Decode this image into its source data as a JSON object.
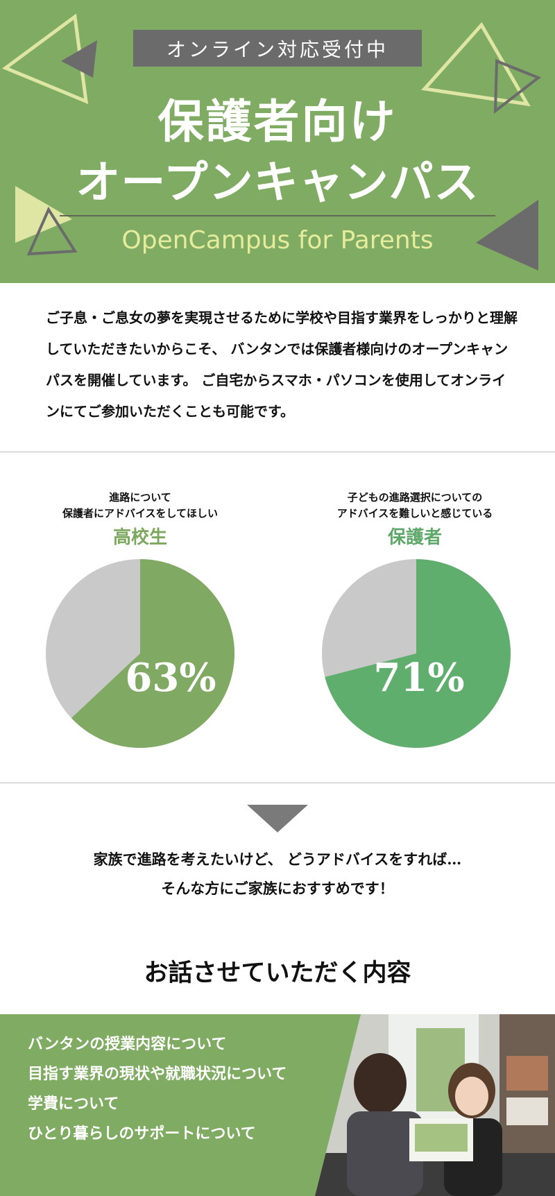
{
  "hero": {
    "badge": "オンライン対応受付中",
    "title_line1": "保護者向け",
    "title_line2": "オープンキャンパス",
    "subtitle": "OpenCampus for Parents",
    "bg_color": "#7fab63",
    "badge_color": "#6b6b6b",
    "subtitle_color": "#e6ec9c"
  },
  "intro": {
    "text": "ご子息・ご息女の夢を実現させるために学校や目指す業界をしっかりと理解していただきたいからこそ、 バンタンでは保護者様向けのオープンキャンパスを開催しています。 ご自宅からスマホ・パソコンを使用してオンラインにてご参加いただくことも可能です。"
  },
  "stats": [
    {
      "caption_line1": "進路について",
      "caption_line2": "保護者にアドバイスをしてほしい",
      "who": "高校生",
      "percent_label": "63%",
      "value": 63,
      "color": "#80aa63",
      "rest_color": "#c9c9c9"
    },
    {
      "caption_line1": "子どもの進路選択についての",
      "caption_line2": "アドバイスを難しいと感じている",
      "who": "保護者",
      "percent_label": "71%",
      "value": 71,
      "color": "#60ae6e",
      "rest_color": "#c9c9c9"
    }
  ],
  "cta": {
    "line1": "家族で進路を考えたいけど、 どうアドバイスをすれば…",
    "line2": "そんな方にご家族におすすめです！"
  },
  "topics": {
    "title": "お話させていただく内容",
    "items": [
      "バンタンの授業内容について",
      "目指す業界の現状や就職状況について",
      "学費について",
      "ひとり暮らしのサポートについて"
    ]
  }
}
